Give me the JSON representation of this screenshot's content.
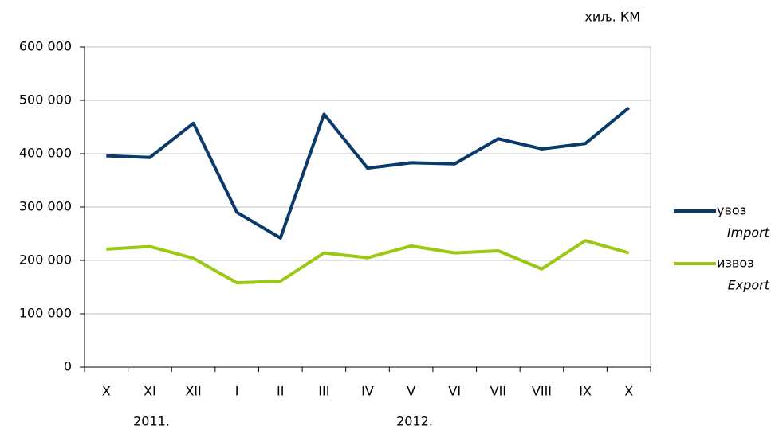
{
  "chart_data": {
    "type": "line",
    "unit_label": "хиљ. КМ",
    "categories": [
      "X",
      "XI",
      "XII",
      "I",
      "II",
      "III",
      "IV",
      "V",
      "VI",
      "VII",
      "VIII",
      "IX",
      "X"
    ],
    "annotations": [
      "2011.",
      "2012."
    ],
    "series": [
      {
        "name": "увоз",
        "name_en": "Import",
        "color": "#0a3a6b",
        "values": [
          396000,
          393000,
          457000,
          290000,
          242000,
          474000,
          373000,
          383000,
          381000,
          428000,
          409000,
          419000,
          486000
        ]
      },
      {
        "name": "извоз",
        "name_en": "Export",
        "color": "#9bc813",
        "values": [
          221000,
          226000,
          204000,
          158000,
          161000,
          214000,
          205000,
          227000,
          214000,
          218000,
          184000,
          237000,
          214000
        ]
      }
    ],
    "ylim": [
      0,
      600000
    ],
    "yticks": [
      0,
      {
        "value": 100000,
        "label": "100 000"
      },
      {
        "value": 200000,
        "label": "200 000"
      },
      {
        "value": 300000,
        "label": "300 000"
      },
      {
        "value": 400000,
        "label": "400 000"
      },
      {
        "value": 500000,
        "label": "500 000"
      },
      {
        "value": 600000,
        "label": "600 000"
      }
    ],
    "grid": true,
    "legend": "right"
  }
}
